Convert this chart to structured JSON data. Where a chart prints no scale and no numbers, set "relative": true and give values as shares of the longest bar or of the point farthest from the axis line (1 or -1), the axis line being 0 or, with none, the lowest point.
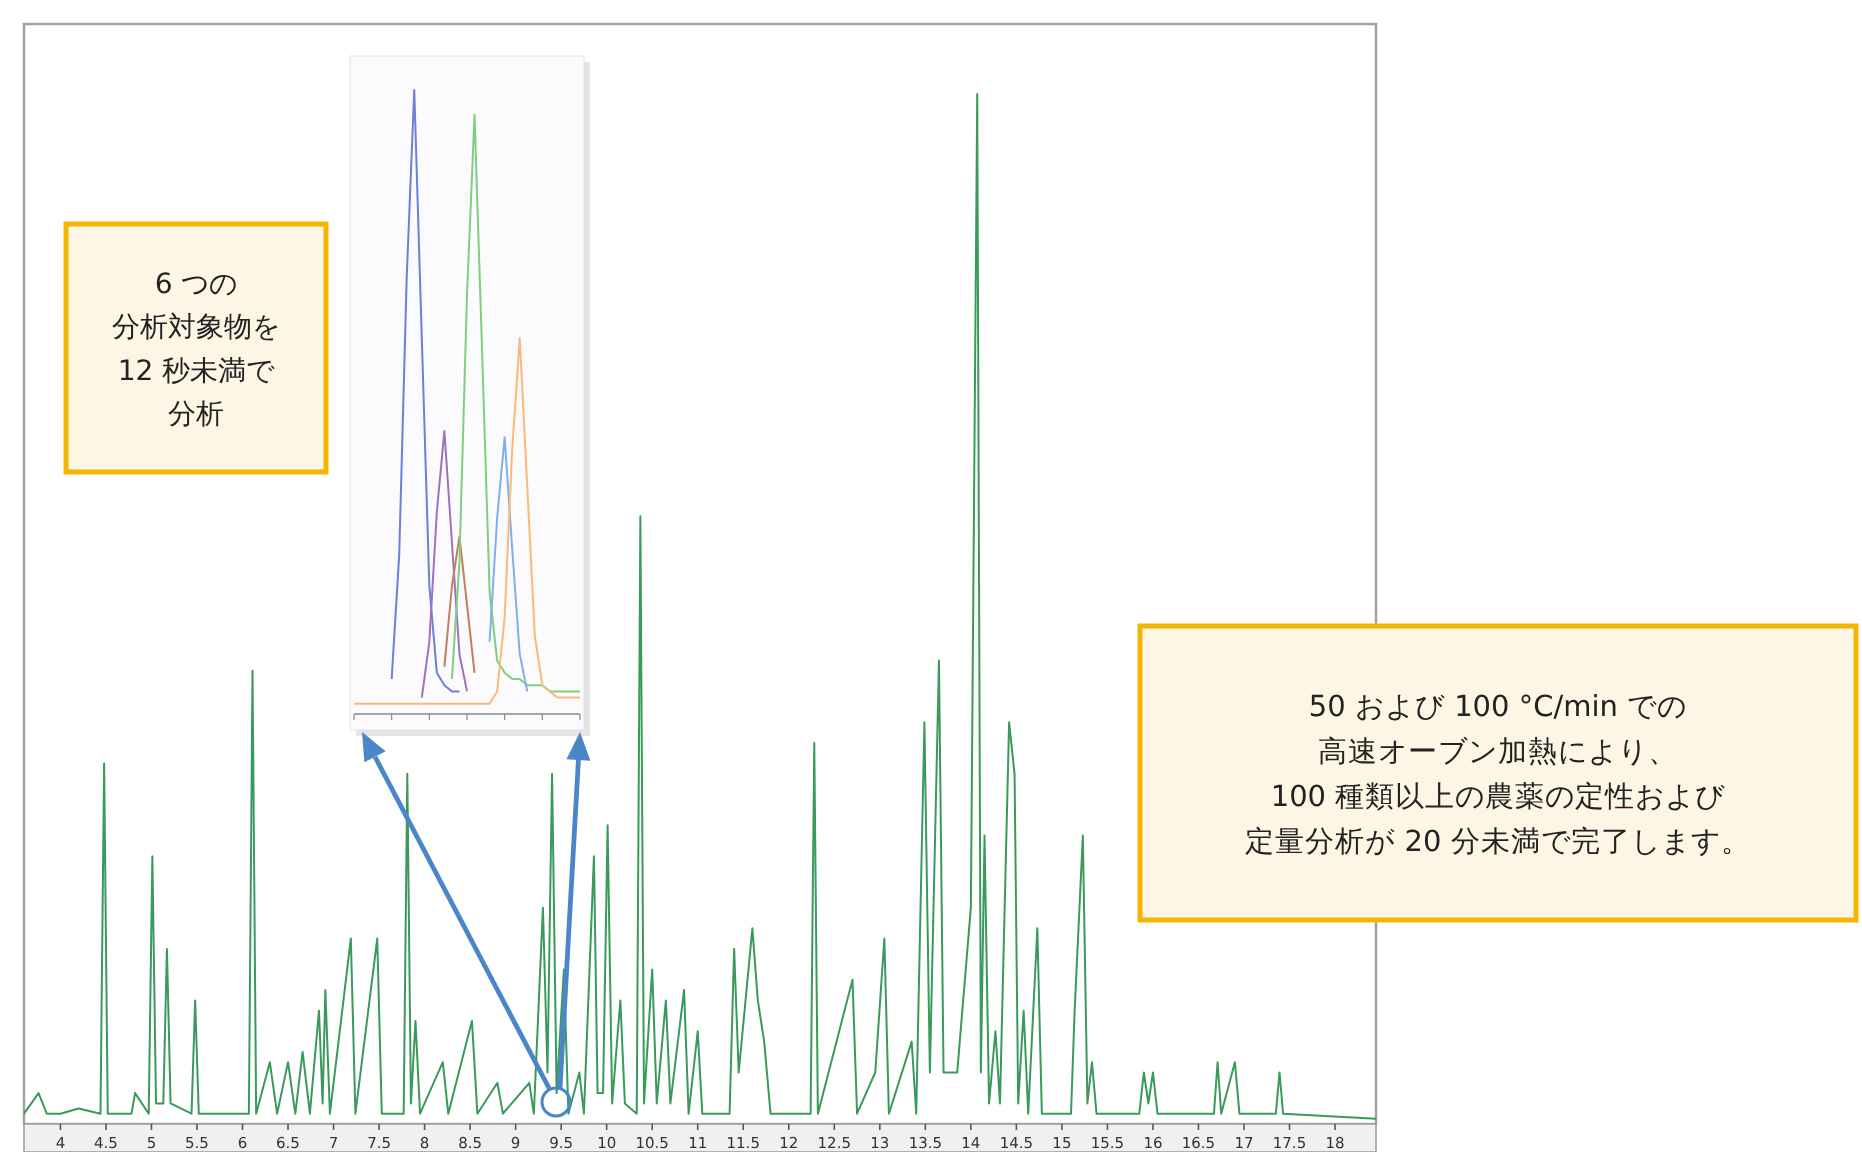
{
  "chart_data": [
    {
      "type": "line",
      "relative": true,
      "color": "#3a9a5c",
      "xlim": [
        3.6,
        18.45
      ],
      "xticks": [
        4,
        4.5,
        5,
        5.5,
        6,
        6.5,
        7,
        7.5,
        8,
        8.5,
        9,
        9.5,
        10,
        10.5,
        11,
        11.5,
        12,
        12.5,
        13,
        13.5,
        14,
        14.5,
        15,
        15.5,
        16,
        16.5,
        17,
        17.5,
        18
      ],
      "tick_labels": "x",
      "x": [
        3.6,
        3.76,
        3.85,
        4.0,
        4.2,
        4.44,
        4.48,
        4.52,
        4.78,
        4.82,
        4.97,
        5.01,
        5.05,
        5.13,
        5.17,
        5.21,
        5.44,
        5.48,
        5.52,
        5.9,
        6.07,
        6.11,
        6.15,
        6.3,
        6.38,
        6.5,
        6.58,
        6.66,
        6.74,
        6.84,
        6.88,
        6.91,
        6.96,
        7.19,
        7.24,
        7.48,
        7.53,
        7.77,
        7.81,
        7.85,
        7.9,
        7.95,
        8.2,
        8.26,
        8.52,
        8.58,
        8.8,
        8.86,
        9.15,
        9.2,
        9.3,
        9.35,
        9.4,
        9.45,
        9.53,
        9.58,
        9.7,
        9.75,
        9.86,
        9.9,
        9.96,
        10.01,
        10.06,
        10.15,
        10.2,
        10.33,
        10.37,
        10.41,
        10.5,
        10.55,
        10.65,
        10.7,
        10.85,
        10.9,
        11.0,
        11.05,
        11.35,
        11.4,
        11.45,
        11.6,
        11.66,
        11.73,
        11.8,
        12.24,
        12.28,
        12.32,
        12.7,
        12.75,
        12.95,
        13.05,
        13.1,
        13.35,
        13.4,
        13.49,
        13.55,
        13.65,
        13.7,
        13.85,
        14.0,
        14.07,
        14.11,
        14.15,
        14.2,
        14.27,
        14.32,
        14.42,
        14.48,
        14.52,
        14.58,
        14.63,
        14.73,
        14.78,
        15.1,
        15.14,
        15.23,
        15.28,
        15.33,
        15.38,
        15.85,
        15.9,
        15.95,
        16.0,
        16.05,
        16.67,
        16.71,
        16.75,
        16.9,
        16.95,
        17.35,
        17.39,
        17.43,
        18.45
      ],
      "values": [
        0.01,
        0.03,
        0.01,
        0.01,
        0.015,
        0.01,
        0.35,
        0.01,
        0.01,
        0.03,
        0.01,
        0.26,
        0.02,
        0.02,
        0.17,
        0.02,
        0.01,
        0.12,
        0.01,
        0.01,
        0.01,
        0.44,
        0.01,
        0.06,
        0.01,
        0.06,
        0.01,
        0.07,
        0.01,
        0.11,
        0.02,
        0.13,
        0.01,
        0.18,
        0.01,
        0.18,
        0.01,
        0.01,
        0.34,
        0.02,
        0.1,
        0.01,
        0.06,
        0.01,
        0.1,
        0.01,
        0.04,
        0.01,
        0.04,
        0.01,
        0.21,
        0.05,
        0.34,
        0.03,
        0.15,
        0.01,
        0.05,
        0.01,
        0.26,
        0.03,
        0.03,
        0.29,
        0.02,
        0.12,
        0.02,
        0.01,
        0.59,
        0.02,
        0.15,
        0.02,
        0.12,
        0.02,
        0.13,
        0.01,
        0.09,
        0.01,
        0.01,
        0.17,
        0.05,
        0.19,
        0.12,
        0.08,
        0.01,
        0.01,
        0.37,
        0.01,
        0.14,
        0.01,
        0.05,
        0.18,
        0.01,
        0.08,
        0.01,
        0.39,
        0.05,
        0.45,
        0.05,
        0.05,
        0.21,
        1.0,
        0.05,
        0.28,
        0.02,
        0.09,
        0.02,
        0.39,
        0.34,
        0.02,
        0.11,
        0.01,
        0.19,
        0.01,
        0.01,
        0.11,
        0.28,
        0.02,
        0.06,
        0.01,
        0.01,
        0.05,
        0.02,
        0.05,
        0.01,
        0.01,
        0.06,
        0.01,
        0.06,
        0.01,
        0.01,
        0.05,
        0.01,
        0.005
      ],
      "annotations": [
        "6 つの分析対象物を12 秒未満で分析",
        "50 および 100 °C/min での高速オーブン加熱により、100 種類以上の農薬の定性および定量分析が 20 分未満で完了します。"
      ]
    },
    {
      "type": "line",
      "relative": true,
      "tick_labels": false,
      "categories": [
        null,
        null,
        null,
        null,
        null,
        null,
        null,
        null,
        null,
        null,
        null,
        null,
        null,
        null,
        null,
        null,
        null,
        null,
        null,
        null,
        null,
        null,
        null,
        null,
        null,
        null,
        null,
        null,
        null,
        null,
        null
      ],
      "series": [
        {
          "color": "#6f7fd8",
          "values": [
            null,
            null,
            null,
            null,
            null,
            0.05,
            0.25,
            0.7,
            1.0,
            0.6,
            0.2,
            0.06,
            0.04,
            0.03,
            0.03,
            null,
            null,
            null,
            null,
            null,
            null,
            null,
            null,
            null,
            null,
            null,
            null,
            null,
            null,
            null,
            null
          ]
        },
        {
          "color": "#a070c0",
          "values": [
            null,
            null,
            null,
            null,
            null,
            null,
            null,
            null,
            null,
            0.02,
            0.11,
            0.32,
            0.45,
            0.27,
            0.09,
            0.03,
            null,
            null,
            null,
            null,
            null,
            null,
            null,
            null,
            null,
            null,
            null,
            null,
            null,
            null,
            null
          ]
        },
        {
          "color": "#c08060",
          "values": [
            null,
            null,
            null,
            null,
            null,
            null,
            null,
            null,
            null,
            null,
            null,
            null,
            0.07,
            0.2,
            0.28,
            0.17,
            0.06,
            null,
            null,
            null,
            null,
            null,
            null,
            null,
            null,
            null,
            null,
            null,
            null,
            null,
            null
          ]
        },
        {
          "color": "#7dcf7d",
          "values": [
            null,
            null,
            null,
            null,
            null,
            null,
            null,
            null,
            null,
            null,
            null,
            null,
            null,
            0.05,
            0.24,
            0.67,
            0.96,
            0.58,
            0.19,
            0.08,
            0.06,
            0.05,
            0.05,
            0.04,
            0.04,
            0.04,
            0.03,
            0.03,
            0.03,
            0.03,
            0.03
          ]
        },
        {
          "color": "#7fb0e8",
          "values": [
            null,
            null,
            null,
            null,
            null,
            null,
            null,
            null,
            null,
            null,
            null,
            null,
            null,
            null,
            null,
            null,
            null,
            null,
            0.11,
            0.31,
            0.44,
            0.26,
            0.09,
            0.03,
            null,
            null,
            null,
            null,
            null,
            null,
            null
          ]
        },
        {
          "color": "#f9b97a",
          "values": [
            0.01,
            0.01,
            0.01,
            0.01,
            0.01,
            0.01,
            0.01,
            0.01,
            0.01,
            0.01,
            0.01,
            0.01,
            0.01,
            0.01,
            0.01,
            0.01,
            0.01,
            0.01,
            0.01,
            0.03,
            0.15,
            0.42,
            0.6,
            0.36,
            0.12,
            0.04,
            0.03,
            0.02,
            0.02,
            0.02,
            0.02
          ]
        }
      ]
    }
  ]
}
